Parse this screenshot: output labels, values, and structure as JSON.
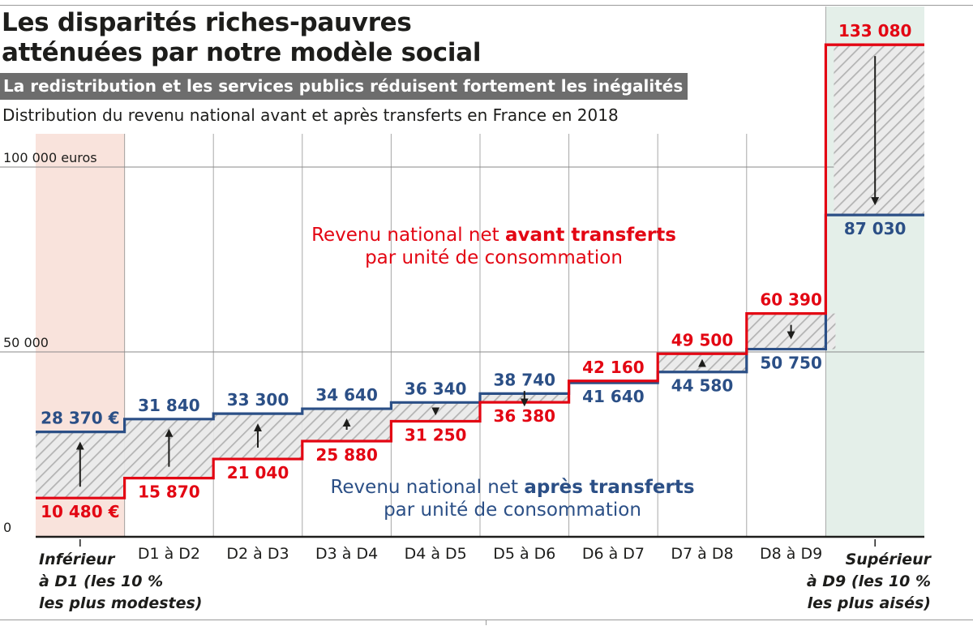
{
  "title": {
    "line1": "Les disparités riches-pauvres",
    "line2": "atténuées par notre modèle social"
  },
  "subtitle": "La redistribution et les services publics réduisent fortement les inégalités",
  "description": "Distribution du revenu national avant et après transferts en France en 2018",
  "colors": {
    "before": "#e30613",
    "after": "#2b4f86",
    "bottom_band": "#f9e3dc",
    "top_band": "#e4efe9",
    "hatch": "#b8b8b8"
  },
  "annotations": {
    "before": {
      "prefix": "Revenu national net ",
      "bold": "avant transferts",
      "line2": "par unité de consommation"
    },
    "after": {
      "prefix": "Revenu national net ",
      "bold": "après transferts",
      "line2": "par unité de consommation"
    }
  },
  "chart_data": {
    "type": "step",
    "y_axis": {
      "ylim": [
        0,
        100000
      ],
      "ticks": [
        {
          "value": 0,
          "label": "0"
        },
        {
          "value": 50000,
          "label": "50 000"
        },
        {
          "value": 100000,
          "label": "100 000 euros"
        }
      ]
    },
    "x_axis": {
      "categories": [
        [
          "Inférieur",
          "à D1 (les 10 %",
          "les plus modestes)"
        ],
        [
          "D1 à D2"
        ],
        [
          "D2 à D3"
        ],
        [
          "D3 à D4"
        ],
        [
          "D4 à D5"
        ],
        [
          "D5 à D6"
        ],
        [
          "D6 à D7"
        ],
        [
          "D7 à D8"
        ],
        [
          "D8 à D9"
        ],
        [
          "Supérieur",
          "à D9 (les 10 %",
          "les plus aisés)"
        ]
      ]
    },
    "series": [
      {
        "key": "before",
        "values": [
          10480,
          15870,
          21040,
          25880,
          31250,
          36380,
          42160,
          49500,
          60390,
          133080
        ],
        "labels": [
          "10 480 €",
          "15 870",
          "21 040",
          "25 880",
          "31 250",
          "36 380",
          "42 160",
          "49 500",
          "60 390",
          "133 080"
        ]
      },
      {
        "key": "after",
        "values": [
          28370,
          31840,
          33300,
          34640,
          36340,
          38740,
          41640,
          44580,
          50750,
          87030
        ],
        "labels": [
          "28 370 €",
          "31 840",
          "33 300",
          "34 640",
          "36 340",
          "38 740",
          "41 640",
          "44 580",
          "50 750",
          "87 030"
        ]
      }
    ],
    "grid": true
  }
}
